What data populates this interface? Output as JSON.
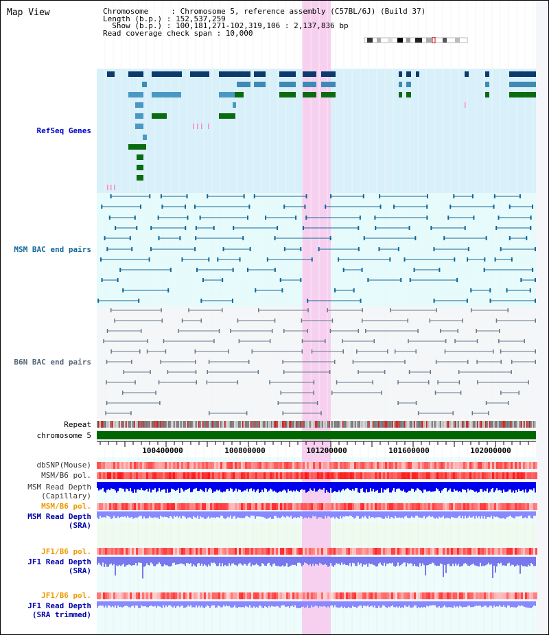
{
  "view_title": "Map View",
  "info": {
    "chromosome_line": "Chromosome     : Chromosome 5, reference assembly (C57BL/6J) (Build 37)",
    "length_line": "Length (b.p.) : 152,537,259",
    "show_line": "  Show (b.p.) : 100,181,271-102,319,106 : 2,137,836 bp",
    "coverage_line": "Read coverage check span : 10,000"
  },
  "tracks": {
    "refseq": "RefSeq Genes",
    "msm_bac": "MSM BAC end pairs",
    "b6n_bac": "B6N BAC end pairs",
    "repeat": "Repeat",
    "chromosome": "chromosome 5",
    "dbsnp": "dbSNP(Mouse)",
    "msm_b6_pol_1": "MSM/B6 pol.",
    "msm_depth_cap_1": "MSM Read Depth",
    "msm_depth_cap_2": "(Capillary)",
    "msm_b6_pol_2": "MSM/B6 pol.",
    "msm_depth_sra_1": "MSM Read Depth",
    "msm_depth_sra_2": "(SRA)",
    "jf1_pol_1": "JF1/B6 pol.",
    "jf1_depth_sra_1": "JF1 Read Depth",
    "jf1_depth_sra_2": "(SRA)",
    "jf1_pol_2": "JF1/B6 pol.",
    "jf1_depth_trim_1": "JF1 Read Depth",
    "jf1_depth_trim_2": "(SRA trimmed)"
  },
  "axis_ticks": [
    "100400000",
    "100800000",
    "101200000",
    "101600000",
    "102000000"
  ],
  "colors": {
    "refseq_bg": "#d8f0fa",
    "bac_bg": "#e6fbfb",
    "b6n_bg": "#f4f6f8",
    "highlight": "#f7d0f0",
    "chromosome_bar": "#006600",
    "depth_cap": "#0000ee",
    "depth_sra": "#8888ff",
    "pol": "#ee4444"
  }
}
